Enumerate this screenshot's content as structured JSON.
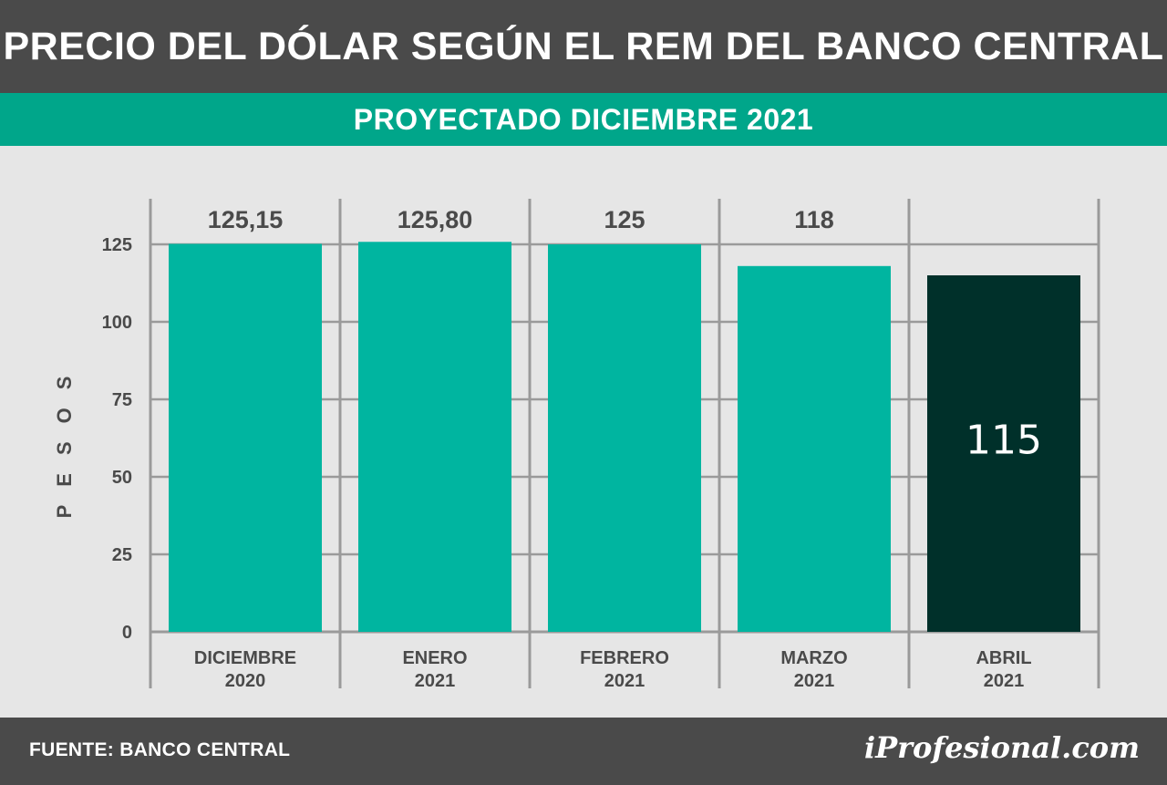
{
  "header": {
    "title": "PRECIO DEL DÓLAR SEGÚN EL REM DEL BANCO CENTRAL",
    "subtitle": "PROYECTADO DICIEMBRE 2021"
  },
  "footer": {
    "source": "FUENTE: BANCO CENTRAL",
    "logo": "iProfesional.com"
  },
  "colors": {
    "bar": "#00b5a0",
    "highlight_bar": "#00302a",
    "header_bg": "#4a4a4a",
    "subtitle_bg": "#00a68a",
    "background": "#e6e6e6",
    "grid": "#9a9a9a"
  },
  "chart_data": {
    "type": "bar",
    "title": "PRECIO DEL DÓLAR SEGÚN EL REM DEL BANCO CENTRAL",
    "subtitle": "PROYECTADO DICIEMBRE 2021",
    "categories": [
      [
        "DICIEMBRE",
        "2020"
      ],
      [
        "ENERO",
        "2021"
      ],
      [
        "FEBRERO",
        "2021"
      ],
      [
        "MARZO",
        "2021"
      ],
      [
        "ABRIL",
        "2021"
      ]
    ],
    "values": [
      125.15,
      125.8,
      125,
      118,
      115
    ],
    "value_labels": [
      "125,15",
      "125,80",
      "125",
      "118",
      "115"
    ],
    "highlight_index": 4,
    "xlabel": "",
    "ylabel": "PESOS",
    "ylim": [
      0,
      125
    ],
    "yticks": [
      0,
      25,
      50,
      75,
      100,
      125
    ],
    "grid": true,
    "legend": "none"
  }
}
